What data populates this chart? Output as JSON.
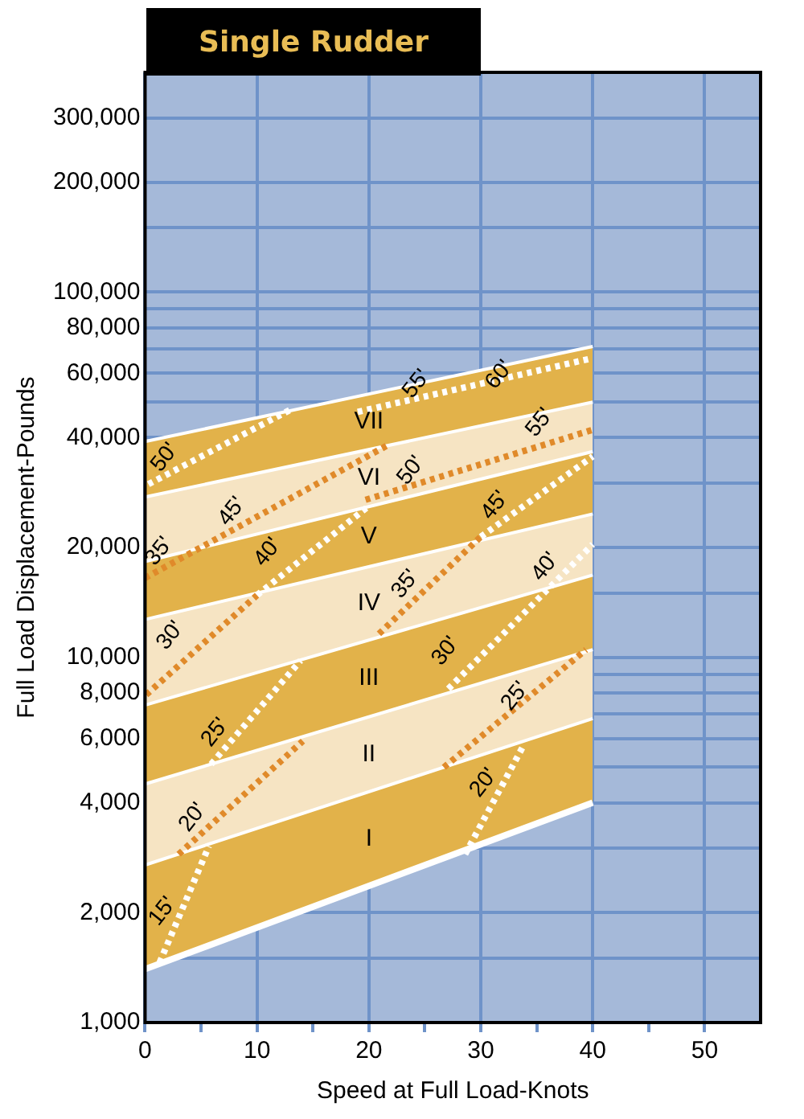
{
  "chart_data": {
    "type": "area",
    "title": "Single Rudder",
    "xlabel": "Speed at Full Load-Knots",
    "ylabel": "Full Load Displacement-Pounds",
    "xlim": [
      0,
      55
    ],
    "xticks": [
      0,
      {
        "value": 5,
        "label": null
      },
      10,
      {
        "value": 15,
        "label": null
      },
      20,
      {
        "value": 25,
        "label": null
      },
      30,
      {
        "value": 35,
        "label": null
      },
      40,
      {
        "value": 45,
        "label": null
      },
      50
    ],
    "ylim": [
      1000,
      400000
    ],
    "log": "y",
    "yticks": [
      {
        "value": 1000,
        "label": "1,000"
      },
      {
        "value": 1500,
        "label": null
      },
      {
        "value": 2000,
        "label": "2,000"
      },
      {
        "value": 3000,
        "label": null
      },
      {
        "value": 4000,
        "label": "4,000"
      },
      {
        "value": 5000,
        "label": null
      },
      {
        "value": 6000,
        "label": "6,000"
      },
      {
        "value": 7000,
        "label": null
      },
      {
        "value": 8000,
        "label": "8,000"
      },
      {
        "value": 9000,
        "label": null
      },
      {
        "value": 10000,
        "label": "10,000"
      },
      {
        "value": 15000,
        "label": null
      },
      {
        "value": 20000,
        "label": "20,000"
      },
      {
        "value": 30000,
        "label": null
      },
      {
        "value": 40000,
        "label": "40,000"
      },
      {
        "value": 50000,
        "label": null
      },
      {
        "value": 60000,
        "label": "60,000"
      },
      {
        "value": 70000,
        "label": null
      },
      {
        "value": 80000,
        "label": "80,000"
      },
      {
        "value": 90000,
        "label": null
      },
      {
        "value": 100000,
        "label": "100,000"
      },
      {
        "value": 150000,
        "label": null
      },
      {
        "value": 200000,
        "label": "200,000"
      },
      {
        "value": 300000,
        "label": "300,000"
      }
    ],
    "grid": true,
    "legend": false,
    "marker": "none",
    "series": [
      {
        "type": "line",
        "color": "#ffffff",
        "x": [
          0,
          40
        ],
        "values": [
          1400,
          4000
        ]
      },
      {
        "name": "I",
        "color": "#e2b24a",
        "x": [
          0,
          40
        ],
        "values": [
          2700,
          6800
        ]
      },
      {
        "name": "II",
        "color": "#f6e4c3",
        "x": [
          0,
          40
        ],
        "values": [
          4500,
          10500
        ]
      },
      {
        "name": "III",
        "color": "#e2b24a",
        "x": [
          0,
          40
        ],
        "values": [
          7400,
          16800
        ]
      },
      {
        "name": "IV",
        "color": "#f6e4c3",
        "x": [
          0,
          40
        ],
        "values": [
          12700,
          24700
        ]
      },
      {
        "name": "V",
        "color": "#e2b24a",
        "x": [
          0,
          40
        ],
        "values": [
          18300,
          36600
        ]
      },
      {
        "name": "VI",
        "color": "#f6e4c3",
        "x": [
          0,
          40
        ],
        "values": [
          27500,
          50000
        ]
      },
      {
        "name": "VII",
        "color": "#e2b24a",
        "x": [
          0,
          40
        ],
        "values": [
          39000,
          71000
        ]
      },
      {
        "type": "line",
        "line_style": "dotted",
        "color": "#ffffff",
        "x": [
          1.3,
          5.7
        ],
        "values": [
          1460,
          3040
        ]
      },
      {
        "type": "line",
        "line_style": "dotted",
        "color": "#e08a2a",
        "x": [
          3.0,
          14.1
        ],
        "values": [
          2890,
          5900
        ]
      },
      {
        "type": "line",
        "line_style": "dotted",
        "color": "#ffffff",
        "x": [
          5.9,
          13.9
        ],
        "values": [
          5100,
          9800
        ]
      },
      {
        "type": "line",
        "line_style": "dotted",
        "color": "#e08a2a",
        "x": [
          0.1,
          10
        ],
        "values": [
          7900,
          14800
        ]
      },
      {
        "type": "line",
        "line_style": "dotted",
        "color": "#ffffff",
        "x": [
          10,
          20
        ],
        "values": [
          14800,
          26000
        ]
      },
      {
        "type": "line",
        "line_style": "dotted",
        "color": "#e08a2a",
        "x": [
          0,
          21.6
        ],
        "values": [
          16500,
          38000
        ]
      },
      {
        "type": "line",
        "line_style": "dotted",
        "color": "#ffffff",
        "x": [
          0.3,
          12.9
        ],
        "values": [
          29800,
          47500
        ]
      },
      {
        "type": "line",
        "line_style": "dotted",
        "color": "#ffffff",
        "x": [
          19,
          40
        ],
        "values": [
          47000,
          66000
        ]
      },
      {
        "type": "line",
        "line_style": "dotted",
        "color": "#e08a2a",
        "x": [
          19.7,
          40
        ],
        "values": [
          27000,
          42000
        ]
      },
      {
        "type": "line",
        "line_style": "dotted",
        "color": "#e08a2a",
        "x": [
          20.9,
          30
        ],
        "values": [
          11600,
          21400
        ]
      },
      {
        "type": "line",
        "line_style": "dotted",
        "color": "#ffffff",
        "x": [
          30,
          40
        ],
        "values": [
          21400,
          35500
        ]
      },
      {
        "type": "line",
        "line_style": "dotted",
        "color": "#e08a2a",
        "x": [
          26.7,
          39.4
        ],
        "values": [
          5000,
          10500
        ]
      },
      {
        "type": "line",
        "line_style": "dotted",
        "color": "#ffffff",
        "x": [
          28.6,
          33.9
        ],
        "values": [
          2890,
          5800
        ]
      },
      {
        "type": "line",
        "line_style": "dotted",
        "color": "#ffffff",
        "x": [
          27.1,
          40
        ],
        "values": [
          8200,
          20400
        ]
      }
    ],
    "annotations": [
      {
        "text": "15'",
        "x": 2.8,
        "y": 1880
      },
      {
        "text": "20'",
        "x": 5.5,
        "y": 3400
      },
      {
        "text": "20'",
        "x": 31.5,
        "y": 4230
      },
      {
        "text": "25'",
        "x": 7.5,
        "y": 5810
      },
      {
        "text": "25'",
        "x": 34.3,
        "y": 7300
      },
      {
        "text": "30'",
        "x": 3.5,
        "y": 10700
      },
      {
        "text": "30'",
        "x": 28.1,
        "y": 9700
      },
      {
        "text": "35'",
        "x": 2.5,
        "y": 18200
      },
      {
        "text": "35'",
        "x": 24.5,
        "y": 14800
      },
      {
        "text": "40'",
        "x": 12.2,
        "y": 18100
      },
      {
        "text": "40'",
        "x": 37,
        "y": 16500
      },
      {
        "text": "45'",
        "x": 9,
        "y": 23400
      },
      {
        "text": "45'",
        "x": 32.5,
        "y": 24300
      },
      {
        "text": "50'",
        "x": 3,
        "y": 32900
      },
      {
        "text": "50'",
        "x": 25,
        "y": 30300
      },
      {
        "text": "55'",
        "x": 25.5,
        "y": 52300
      },
      {
        "text": "55'",
        "x": 36.5,
        "y": 41000
      },
      {
        "text": "60'",
        "x": 32.9,
        "y": 55400
      }
    ]
  }
}
